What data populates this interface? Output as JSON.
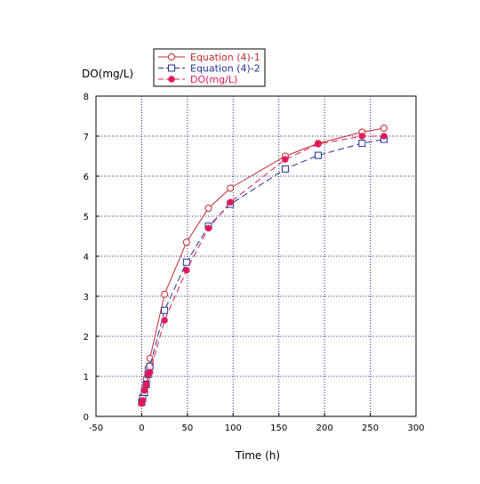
{
  "chart_data": {
    "type": "line",
    "title": "",
    "xlabel": "Time (h)",
    "ylabel": "DO(mg/L)",
    "xlim": [
      -50,
      300
    ],
    "ylim": [
      0,
      8
    ],
    "xticks": [
      -50,
      0,
      50,
      100,
      150,
      200,
      250,
      300
    ],
    "yticks": [
      0,
      1,
      2,
      3,
      4,
      5,
      6,
      7,
      8
    ],
    "grid": true,
    "legend_position": "top-left, above plot",
    "series": [
      {
        "name": "Equation (4)-1",
        "color": "#c0282d",
        "marker": "open-circle",
        "line": "solid",
        "x": [
          0,
          1,
          3,
          5,
          7,
          9,
          25,
          49,
          73,
          97,
          157,
          193,
          241,
          265
        ],
        "y": [
          0.35,
          0.5,
          0.7,
          0.95,
          1.2,
          1.45,
          3.05,
          4.35,
          5.2,
          5.7,
          6.5,
          6.82,
          7.1,
          7.2
        ]
      },
      {
        "name": "Equation (4)-2",
        "color": "#1f2f8f",
        "marker": "open-square",
        "line": "dashed",
        "x": [
          0,
          1,
          3,
          5,
          7,
          9,
          25,
          49,
          73,
          97,
          157,
          193,
          241,
          265
        ],
        "y": [
          0.35,
          0.45,
          0.6,
          0.8,
          1.05,
          1.25,
          2.65,
          3.85,
          4.75,
          5.3,
          6.18,
          6.52,
          6.82,
          6.92
        ]
      },
      {
        "name": "DO(mg/L)",
        "color": "#e0195a",
        "marker": "filled-circle",
        "line": "dashed",
        "x": [
          0,
          1,
          3,
          5,
          7,
          9,
          25,
          49,
          73,
          97,
          157,
          193,
          241,
          265
        ],
        "y": [
          0.32,
          0.4,
          0.65,
          0.8,
          1.05,
          1.1,
          2.4,
          3.65,
          4.7,
          5.35,
          6.42,
          6.8,
          7.0,
          7.0
        ]
      }
    ]
  }
}
